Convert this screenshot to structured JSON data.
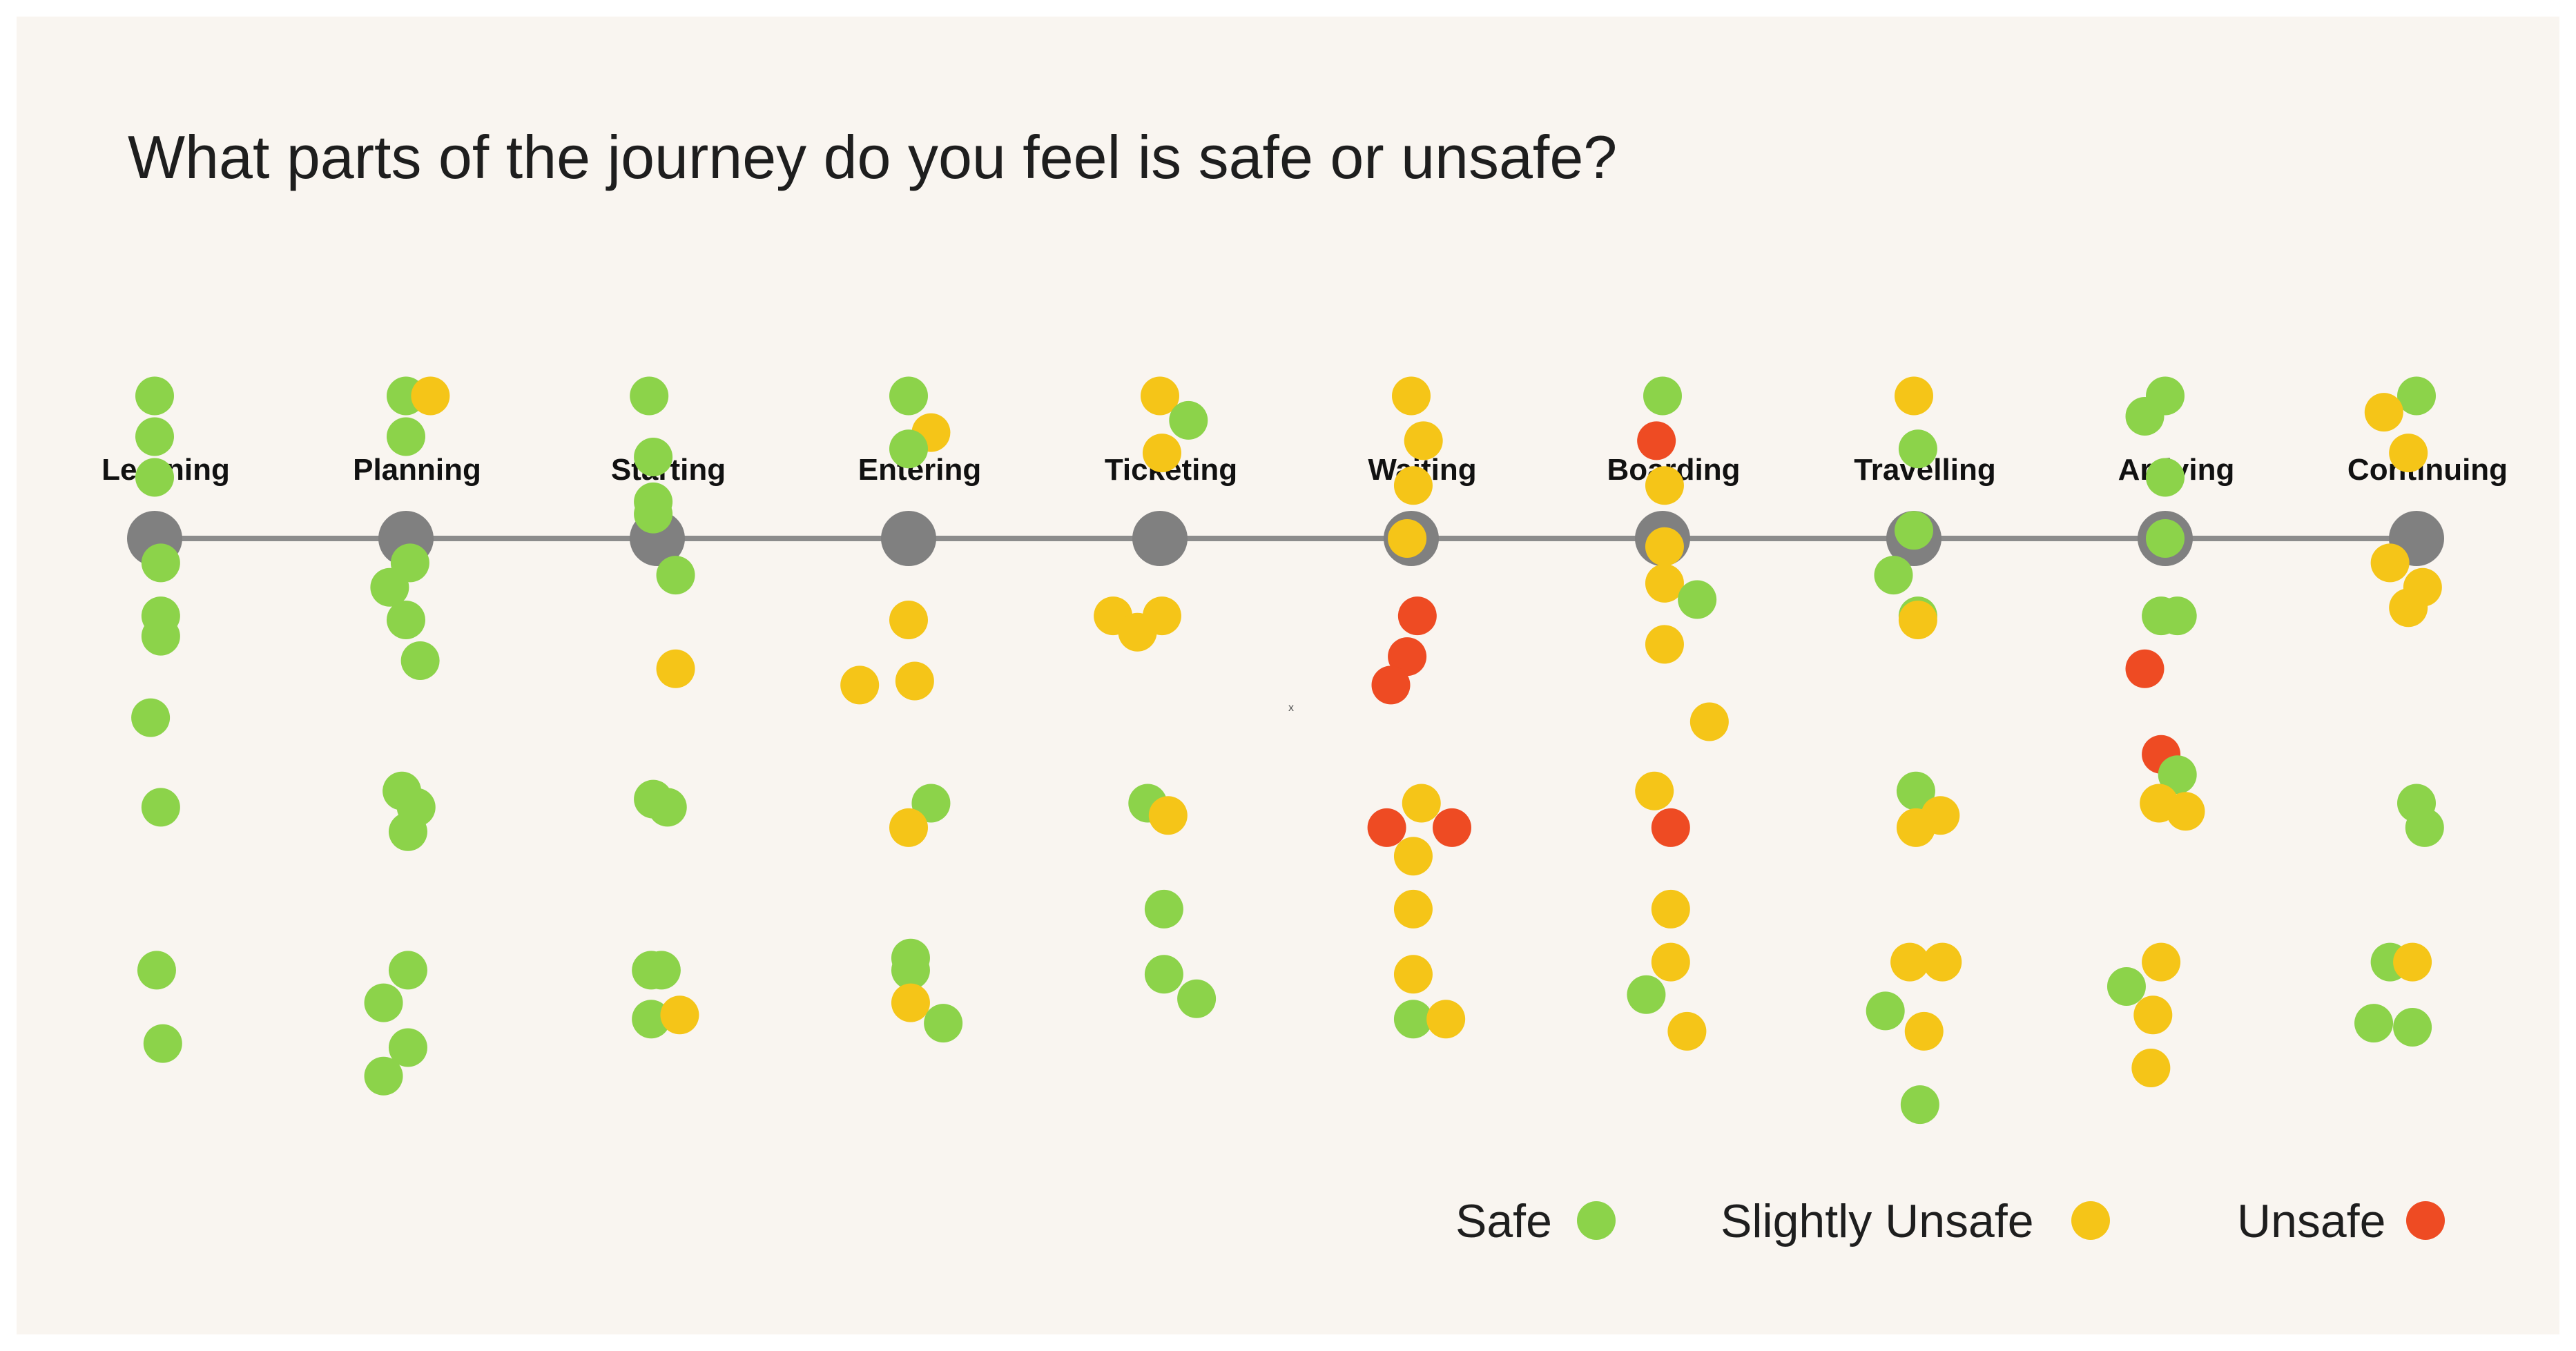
{
  "chart_data": {
    "type": "scatter",
    "title": "What parts of the journey do you feel is safe or unsafe?",
    "stages": [
      "Learning",
      "Planning",
      "Starting",
      "Entering",
      "Ticketing",
      "Waiting",
      "Boarding",
      "Travelling",
      "Arriving",
      "Continuing"
    ],
    "legend": [
      {
        "key": "safe",
        "label": "Safe",
        "color": "#8cd34a"
      },
      {
        "key": "slightly",
        "label": "Slightly Unsafe",
        "color": "#f5c518"
      },
      {
        "key": "unsafe",
        "label": "Unsafe",
        "color": "#ee4b23"
      }
    ],
    "stray_mark": "x",
    "series": [
      {
        "stage": "Learning",
        "points": [
          {
            "x": 0.0,
            "y": -3.5,
            "c": "safe"
          },
          {
            "x": 0.0,
            "y": -2.5,
            "c": "safe"
          },
          {
            "x": 0.0,
            "y": -1.5,
            "c": "safe"
          },
          {
            "x": 0.15,
            "y": 0.6,
            "c": "safe"
          },
          {
            "x": 0.15,
            "y": 1.9,
            "c": "safe"
          },
          {
            "x": 0.15,
            "y": 2.4,
            "c": "safe"
          },
          {
            "x": -0.1,
            "y": 4.4,
            "c": "safe"
          },
          {
            "x": 0.15,
            "y": 6.6,
            "c": "safe"
          },
          {
            "x": 0.05,
            "y": 10.6,
            "c": "safe"
          },
          {
            "x": 0.2,
            "y": 12.4,
            "c": "safe"
          }
        ]
      },
      {
        "stage": "Planning",
        "points": [
          {
            "x": 0.0,
            "y": -3.5,
            "c": "safe"
          },
          {
            "x": 0.6,
            "y": -3.5,
            "c": "slightly"
          },
          {
            "x": 0.0,
            "y": -2.5,
            "c": "safe"
          },
          {
            "x": 0.1,
            "y": 0.6,
            "c": "safe"
          },
          {
            "x": -0.4,
            "y": 1.2,
            "c": "safe"
          },
          {
            "x": 0.0,
            "y": 2.0,
            "c": "safe"
          },
          {
            "x": 0.35,
            "y": 3.0,
            "c": "safe"
          },
          {
            "x": -0.1,
            "y": 6.2,
            "c": "safe"
          },
          {
            "x": 0.25,
            "y": 6.6,
            "c": "safe"
          },
          {
            "x": 0.05,
            "y": 7.2,
            "c": "safe"
          },
          {
            "x": 0.05,
            "y": 10.6,
            "c": "safe"
          },
          {
            "x": -0.55,
            "y": 11.4,
            "c": "safe"
          },
          {
            "x": 0.05,
            "y": 12.5,
            "c": "safe"
          },
          {
            "x": -0.55,
            "y": 13.2,
            "c": "safe"
          }
        ]
      },
      {
        "stage": "Starting",
        "points": [
          {
            "x": -0.2,
            "y": -3.5,
            "c": "safe"
          },
          {
            "x": -0.1,
            "y": -2.0,
            "c": "safe"
          },
          {
            "x": -0.1,
            "y": -0.9,
            "c": "safe"
          },
          {
            "x": -0.1,
            "y": -0.6,
            "c": "safe"
          },
          {
            "x": 0.45,
            "y": 0.9,
            "c": "safe"
          },
          {
            "x": 0.45,
            "y": 3.2,
            "c": "slightly"
          },
          {
            "x": -0.1,
            "y": 6.4,
            "c": "safe"
          },
          {
            "x": 0.25,
            "y": 6.6,
            "c": "safe"
          },
          {
            "x": -0.15,
            "y": 10.6,
            "c": "safe"
          },
          {
            "x": 0.1,
            "y": 10.6,
            "c": "safe"
          },
          {
            "x": -0.15,
            "y": 11.8,
            "c": "safe"
          },
          {
            "x": 0.55,
            "y": 11.7,
            "c": "slightly"
          }
        ]
      },
      {
        "stage": "Entering",
        "points": [
          {
            "x": 0.0,
            "y": -3.5,
            "c": "safe"
          },
          {
            "x": 0.55,
            "y": -2.6,
            "c": "slightly"
          },
          {
            "x": 0.0,
            "y": -2.2,
            "c": "safe"
          },
          {
            "x": 0.0,
            "y": 2.0,
            "c": "slightly"
          },
          {
            "x": -1.2,
            "y": 3.6,
            "c": "slightly"
          },
          {
            "x": 0.15,
            "y": 3.5,
            "c": "slightly"
          },
          {
            "x": 0.55,
            "y": 6.5,
            "c": "safe"
          },
          {
            "x": 0.0,
            "y": 7.1,
            "c": "slightly"
          },
          {
            "x": 0.05,
            "y": 10.3,
            "c": "safe"
          },
          {
            "x": 0.05,
            "y": 10.6,
            "c": "safe"
          },
          {
            "x": 0.05,
            "y": 11.4,
            "c": "slightly"
          },
          {
            "x": 0.85,
            "y": 11.9,
            "c": "safe"
          }
        ]
      },
      {
        "stage": "Ticketing",
        "points": [
          {
            "x": 0.0,
            "y": -3.5,
            "c": "slightly"
          },
          {
            "x": 0.7,
            "y": -2.9,
            "c": "safe"
          },
          {
            "x": 0.05,
            "y": -2.1,
            "c": "slightly"
          },
          {
            "x": -1.15,
            "y": 1.9,
            "c": "slightly"
          },
          {
            "x": -0.55,
            "y": 2.3,
            "c": "slightly"
          },
          {
            "x": 0.05,
            "y": 1.9,
            "c": "slightly"
          },
          {
            "x": -0.3,
            "y": 6.5,
            "c": "safe"
          },
          {
            "x": 0.2,
            "y": 6.8,
            "c": "slightly"
          },
          {
            "x": 0.1,
            "y": 9.1,
            "c": "safe"
          },
          {
            "x": 0.1,
            "y": 10.7,
            "c": "safe"
          },
          {
            "x": 0.9,
            "y": 11.3,
            "c": "safe"
          }
        ]
      },
      {
        "stage": "Waiting",
        "points": [
          {
            "x": 0.0,
            "y": -3.5,
            "c": "slightly"
          },
          {
            "x": 0.3,
            "y": -2.4,
            "c": "slightly"
          },
          {
            "x": 0.05,
            "y": -1.3,
            "c": "slightly"
          },
          {
            "x": -0.1,
            "y": 0.0,
            "c": "slightly"
          },
          {
            "x": 0.15,
            "y": 1.9,
            "c": "unsafe"
          },
          {
            "x": -0.1,
            "y": 2.9,
            "c": "unsafe"
          },
          {
            "x": -0.5,
            "y": 3.6,
            "c": "unsafe"
          },
          {
            "x": -0.6,
            "y": 7.1,
            "c": "unsafe"
          },
          {
            "x": 0.25,
            "y": 6.5,
            "c": "slightly"
          },
          {
            "x": 1.0,
            "y": 7.1,
            "c": "unsafe"
          },
          {
            "x": 0.05,
            "y": 7.8,
            "c": "slightly"
          },
          {
            "x": 0.05,
            "y": 9.1,
            "c": "slightly"
          },
          {
            "x": 0.05,
            "y": 10.7,
            "c": "slightly"
          },
          {
            "x": 0.05,
            "y": 11.8,
            "c": "safe"
          },
          {
            "x": 0.85,
            "y": 11.8,
            "c": "slightly"
          }
        ]
      },
      {
        "stage": "Boarding",
        "points": [
          {
            "x": 0.0,
            "y": -3.5,
            "c": "safe"
          },
          {
            "x": -0.15,
            "y": -2.4,
            "c": "unsafe"
          },
          {
            "x": 0.05,
            "y": -1.3,
            "c": "slightly"
          },
          {
            "x": 0.05,
            "y": 0.2,
            "c": "slightly"
          },
          {
            "x": 0.05,
            "y": 1.1,
            "c": "slightly"
          },
          {
            "x": 0.85,
            "y": 1.5,
            "c": "safe"
          },
          {
            "x": 0.05,
            "y": 2.6,
            "c": "slightly"
          },
          {
            "x": 1.15,
            "y": 4.5,
            "c": "slightly"
          },
          {
            "x": -0.2,
            "y": 6.2,
            "c": "slightly"
          },
          {
            "x": 0.2,
            "y": 7.1,
            "c": "unsafe"
          },
          {
            "x": 0.2,
            "y": 9.1,
            "c": "slightly"
          },
          {
            "x": 0.2,
            "y": 10.4,
            "c": "slightly"
          },
          {
            "x": -0.4,
            "y": 11.2,
            "c": "safe"
          },
          {
            "x": 0.6,
            "y": 12.1,
            "c": "slightly"
          }
        ]
      },
      {
        "stage": "Travelling",
        "points": [
          {
            "x": 0.0,
            "y": -3.5,
            "c": "slightly"
          },
          {
            "x": 0.1,
            "y": -2.2,
            "c": "safe"
          },
          {
            "x": 0.0,
            "y": -0.2,
            "c": "safe"
          },
          {
            "x": -0.5,
            "y": 0.9,
            "c": "safe"
          },
          {
            "x": 0.1,
            "y": 1.9,
            "c": "safe"
          },
          {
            "x": 0.1,
            "y": 2.0,
            "c": "slightly"
          },
          {
            "x": 0.05,
            "y": 6.2,
            "c": "safe"
          },
          {
            "x": 0.65,
            "y": 6.8,
            "c": "slightly"
          },
          {
            "x": 0.05,
            "y": 7.1,
            "c": "slightly"
          },
          {
            "x": -0.1,
            "y": 10.4,
            "c": "slightly"
          },
          {
            "x": 0.7,
            "y": 10.4,
            "c": "slightly"
          },
          {
            "x": -0.7,
            "y": 11.6,
            "c": "safe"
          },
          {
            "x": 0.25,
            "y": 12.1,
            "c": "slightly"
          },
          {
            "x": 0.15,
            "y": 13.9,
            "c": "safe"
          }
        ]
      },
      {
        "stage": "Arriving",
        "points": [
          {
            "x": 0.0,
            "y": -3.5,
            "c": "safe"
          },
          {
            "x": -0.5,
            "y": -3.0,
            "c": "safe"
          },
          {
            "x": 0.0,
            "y": -1.5,
            "c": "safe"
          },
          {
            "x": 0.0,
            "y": 0.0,
            "c": "safe"
          },
          {
            "x": -0.1,
            "y": 1.9,
            "c": "safe"
          },
          {
            "x": 0.3,
            "y": 1.9,
            "c": "safe"
          },
          {
            "x": -0.5,
            "y": 3.2,
            "c": "unsafe"
          },
          {
            "x": -0.1,
            "y": 5.3,
            "c": "unsafe"
          },
          {
            "x": 0.3,
            "y": 5.8,
            "c": "safe"
          },
          {
            "x": -0.15,
            "y": 6.5,
            "c": "slightly"
          },
          {
            "x": 0.5,
            "y": 6.7,
            "c": "slightly"
          },
          {
            "x": -0.1,
            "y": 10.4,
            "c": "slightly"
          },
          {
            "x": -0.95,
            "y": 11.0,
            "c": "safe"
          },
          {
            "x": -0.3,
            "y": 11.7,
            "c": "slightly"
          },
          {
            "x": -0.35,
            "y": 13.0,
            "c": "slightly"
          }
        ]
      },
      {
        "stage": "Continuing",
        "points": [
          {
            "x": 0.0,
            "y": -3.5,
            "c": "safe"
          },
          {
            "x": -0.8,
            "y": -3.1,
            "c": "slightly"
          },
          {
            "x": -0.2,
            "y": -2.1,
            "c": "slightly"
          },
          {
            "x": -0.65,
            "y": 0.6,
            "c": "slightly"
          },
          {
            "x": 0.15,
            "y": 1.2,
            "c": "slightly"
          },
          {
            "x": -0.2,
            "y": 1.7,
            "c": "slightly"
          },
          {
            "x": 0.0,
            "y": 6.5,
            "c": "safe"
          },
          {
            "x": 0.2,
            "y": 7.1,
            "c": "safe"
          },
          {
            "x": -0.65,
            "y": 10.4,
            "c": "safe"
          },
          {
            "x": -0.1,
            "y": 10.4,
            "c": "slightly"
          },
          {
            "x": -1.05,
            "y": 11.9,
            "c": "safe"
          },
          {
            "x": -0.1,
            "y": 12.0,
            "c": "safe"
          }
        ]
      }
    ]
  }
}
